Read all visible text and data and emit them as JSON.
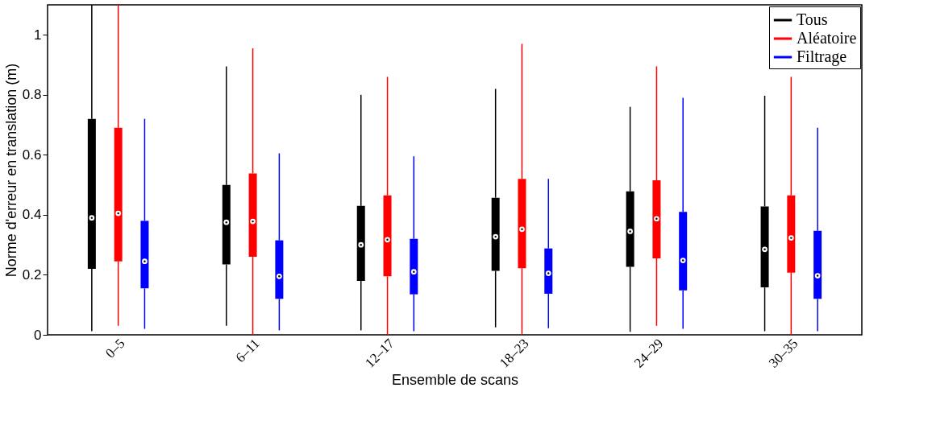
{
  "chart_data": {
    "type": "box",
    "xlabel": "Ensemble de scans",
    "ylabel": "Norme d'erreur en translation (m)",
    "categories": [
      "0–5",
      "6–11",
      "12–17",
      "18–23",
      "24–29",
      "30–35"
    ],
    "ylim": [
      0,
      1.1
    ],
    "yticks": [
      0,
      0.2,
      0.4,
      0.6,
      0.8,
      1
    ],
    "grid": false,
    "legend": "top right",
    "series": [
      {
        "name": "Tous",
        "color": "#000000",
        "boxes": [
          {
            "low": 0.012,
            "q1": 0.22,
            "median": 0.39,
            "q3": 0.72,
            "high": 1.1
          },
          {
            "low": 0.03,
            "q1": 0.235,
            "median": 0.375,
            "q3": 0.5,
            "high": 0.895
          },
          {
            "low": 0.015,
            "q1": 0.18,
            "median": 0.3,
            "q3": 0.43,
            "high": 0.8
          },
          {
            "low": 0.025,
            "q1": 0.213,
            "median": 0.327,
            "q3": 0.457,
            "high": 0.82
          },
          {
            "low": 0.01,
            "q1": 0.227,
            "median": 0.345,
            "q3": 0.478,
            "high": 0.76
          },
          {
            "low": 0.012,
            "q1": 0.158,
            "median": 0.285,
            "q3": 0.428,
            "high": 0.797
          }
        ]
      },
      {
        "name": "Aléatoire",
        "color": "#ff0000",
        "boxes": [
          {
            "low": 0.03,
            "q1": 0.245,
            "median": 0.405,
            "q3": 0.69,
            "high": 1.1
          },
          {
            "low": 0.0,
            "q1": 0.26,
            "median": 0.378,
            "q3": 0.538,
            "high": 0.955
          },
          {
            "low": 0.0,
            "q1": 0.195,
            "median": 0.317,
            "q3": 0.465,
            "high": 0.86
          },
          {
            "low": 0.003,
            "q1": 0.222,
            "median": 0.352,
            "q3": 0.52,
            "high": 0.97
          },
          {
            "low": 0.03,
            "q1": 0.255,
            "median": 0.387,
            "q3": 0.515,
            "high": 0.895
          },
          {
            "low": 0.0,
            "q1": 0.207,
            "median": 0.323,
            "q3": 0.465,
            "high": 0.86
          }
        ]
      },
      {
        "name": "Filtrage",
        "color": "#0000ff",
        "boxes": [
          {
            "low": 0.02,
            "q1": 0.155,
            "median": 0.245,
            "q3": 0.38,
            "high": 0.72
          },
          {
            "low": 0.015,
            "q1": 0.12,
            "median": 0.195,
            "q3": 0.315,
            "high": 0.605
          },
          {
            "low": 0.012,
            "q1": 0.135,
            "median": 0.21,
            "q3": 0.32,
            "high": 0.595
          },
          {
            "low": 0.022,
            "q1": 0.137,
            "median": 0.205,
            "q3": 0.288,
            "high": 0.52
          },
          {
            "low": 0.02,
            "q1": 0.148,
            "median": 0.248,
            "q3": 0.41,
            "high": 0.79
          },
          {
            "low": 0.012,
            "q1": 0.12,
            "median": 0.197,
            "q3": 0.347,
            "high": 0.69
          }
        ]
      }
    ]
  }
}
